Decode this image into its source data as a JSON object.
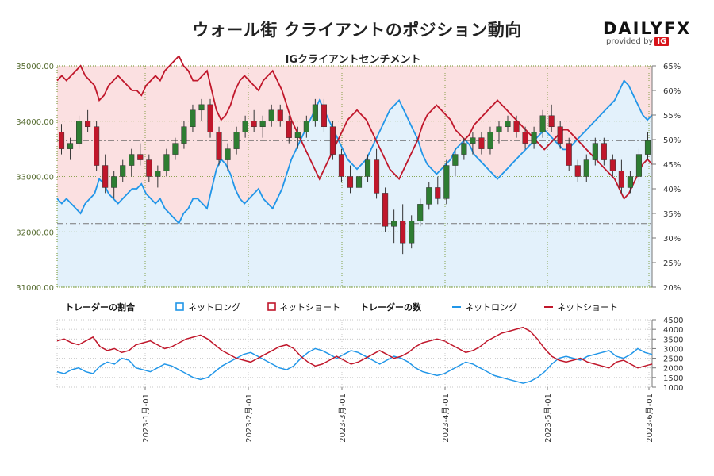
{
  "title": "ウォール街 クライアントのポジション動向",
  "brand": {
    "name_part1": "DAILY",
    "name_part2": "FX",
    "provided_by": "provided by",
    "ig": "IG"
  },
  "colors": {
    "up_candle": "#2e7d32",
    "down_candle": "#c0172b",
    "net_long": "#2196e8",
    "net_short": "#c0172b",
    "short_fill": "#fbe0e1",
    "long_fill": "#e3f1fb",
    "grid": "#6b8e23"
  },
  "chart_data": [
    {
      "type": "candlestick",
      "title": "IGクライアントセンチメント",
      "y_left": {
        "min": 31000,
        "max": 35000,
        "ticks": [
          "31000.00",
          "32000.00",
          "33000.00",
          "34000.00",
          "35000.00"
        ]
      },
      "y_right": {
        "min": 20,
        "max": 65,
        "ticks": [
          "20%",
          "25%",
          "30%",
          "35%",
          "40%",
          "45%",
          "50%",
          "55%",
          "60%",
          "65%"
        ]
      },
      "current_price": 33650,
      "reference_price": 32150,
      "legend": {
        "section_ratio": "トレーダーの割合",
        "net_long": "ネットロング",
        "net_short": "ネットショート",
        "section_count": "トレーダーの数"
      },
      "date_ticks": [
        "2023-1月-01",
        "2023-2月-01",
        "2023-3月-01",
        "2023-4月-01",
        "2023-5月-01",
        "2023-6月-01"
      ],
      "long_pct": [
        38,
        37,
        38,
        37,
        36,
        35,
        37,
        38,
        39,
        42,
        41,
        39,
        38,
        37,
        38,
        39,
        40,
        40,
        41,
        39,
        38,
        37,
        38,
        36,
        35,
        34,
        33,
        35,
        36,
        38,
        38,
        37,
        36,
        40,
        44,
        46,
        45,
        43,
        40,
        38,
        37,
        38,
        39,
        40,
        38,
        37,
        36,
        38,
        40,
        43,
        46,
        48,
        50,
        52,
        54,
        56,
        58,
        56,
        54,
        52,
        50,
        48,
        46,
        45,
        44,
        45,
        46,
        48,
        50,
        52,
        54,
        56,
        57,
        58,
        56,
        54,
        52,
        50,
        47,
        45,
        44,
        43,
        44,
        45,
        46,
        48,
        49,
        50,
        49,
        47,
        46,
        45,
        44,
        43,
        42,
        43,
        44,
        45,
        46,
        47,
        48,
        49,
        50,
        51,
        52,
        51,
        50,
        49,
        48,
        48,
        49,
        50,
        51,
        52,
        53,
        54,
        55,
        56,
        57,
        58,
        60,
        62,
        61,
        59,
        57,
        55,
        54,
        55
      ],
      "short_pct": [
        62,
        63,
        62,
        63,
        64,
        65,
        63,
        62,
        61,
        58,
        59,
        61,
        62,
        63,
        62,
        61,
        60,
        60,
        59,
        61,
        62,
        63,
        62,
        64,
        65,
        66,
        67,
        65,
        64,
        62,
        62,
        63,
        64,
        60,
        56,
        54,
        55,
        57,
        60,
        62,
        63,
        62,
        61,
        60,
        62,
        63,
        64,
        62,
        60,
        57,
        54,
        52,
        50,
        48,
        46,
        44,
        42,
        44,
        46,
        48,
        50,
        52,
        54,
        55,
        56,
        55,
        54,
        52,
        50,
        48,
        46,
        44,
        43,
        42,
        44,
        46,
        48,
        50,
        53,
        55,
        56,
        57,
        56,
        55,
        54,
        52,
        51,
        50,
        51,
        53,
        54,
        55,
        56,
        57,
        58,
        57,
        56,
        55,
        54,
        53,
        52,
        51,
        50,
        49,
        48,
        49,
        50,
        51,
        52,
        52,
        51,
        50,
        49,
        48,
        47,
        46,
        45,
        44,
        43,
        42,
        40,
        38,
        39,
        41,
        43,
        45,
        46,
        45
      ],
      "candles": [
        [
          33800,
          33950,
          33400,
          33500
        ],
        [
          33500,
          33700,
          33300,
          33600
        ],
        [
          33600,
          34100,
          33500,
          34000
        ],
        [
          34000,
          34200,
          33800,
          33900
        ],
        [
          33900,
          34000,
          33100,
          33200
        ],
        [
          33200,
          33400,
          32700,
          32800
        ],
        [
          32800,
          33100,
          32600,
          33000
        ],
        [
          33000,
          33300,
          32900,
          33200
        ],
        [
          33200,
          33500,
          33000,
          33400
        ],
        [
          33400,
          33600,
          33200,
          33300
        ],
        [
          33300,
          33400,
          32900,
          33000
        ],
        [
          33000,
          33200,
          32800,
          33100
        ],
        [
          33100,
          33500,
          33000,
          33400
        ],
        [
          33400,
          33700,
          33300,
          33600
        ],
        [
          33600,
          34000,
          33500,
          33900
        ],
        [
          33900,
          34300,
          33800,
          34200
        ],
        [
          34200,
          34400,
          34000,
          34300
        ],
        [
          34300,
          34400,
          33700,
          33800
        ],
        [
          33800,
          33900,
          33200,
          33300
        ],
        [
          33300,
          33600,
          33100,
          33500
        ],
        [
          33500,
          33900,
          33400,
          33800
        ],
        [
          33800,
          34100,
          33700,
          34000
        ],
        [
          34000,
          34200,
          33800,
          33900
        ],
        [
          33900,
          34100,
          33700,
          34000
        ],
        [
          34000,
          34300,
          33900,
          34200
        ],
        [
          34200,
          34300,
          33900,
          34000
        ],
        [
          34000,
          34100,
          33600,
          33700
        ],
        [
          33700,
          33900,
          33500,
          33800
        ],
        [
          33800,
          34100,
          33700,
          34000
        ],
        [
          34000,
          34400,
          33900,
          34300
        ],
        [
          34300,
          34400,
          33800,
          33900
        ],
        [
          33900,
          34000,
          33300,
          33400
        ],
        [
          33400,
          33500,
          32900,
          33000
        ],
        [
          33000,
          33200,
          32700,
          32800
        ],
        [
          32800,
          33100,
          32600,
          33000
        ],
        [
          33000,
          33400,
          32900,
          33300
        ],
        [
          33300,
          33500,
          32600,
          32700
        ],
        [
          32700,
          32800,
          32000,
          32100
        ],
        [
          32100,
          32400,
          31800,
          32200
        ],
        [
          32200,
          32500,
          31600,
          31800
        ],
        [
          31800,
          32300,
          31700,
          32200
        ],
        [
          32200,
          32600,
          32100,
          32500
        ],
        [
          32500,
          32900,
          32400,
          32800
        ],
        [
          32800,
          33000,
          32500,
          32600
        ],
        [
          32600,
          33300,
          32500,
          33200
        ],
        [
          33200,
          33500,
          33000,
          33400
        ],
        [
          33400,
          33700,
          33300,
          33600
        ],
        [
          33600,
          33800,
          33400,
          33700
        ],
        [
          33700,
          33800,
          33400,
          33500
        ],
        [
          33500,
          33900,
          33400,
          33800
        ],
        [
          33800,
          34000,
          33600,
          33900
        ],
        [
          33900,
          34100,
          33800,
          34000
        ],
        [
          34000,
          34100,
          33700,
          33800
        ],
        [
          33800,
          33900,
          33500,
          33600
        ],
        [
          33600,
          33900,
          33500,
          33800
        ],
        [
          33800,
          34200,
          33700,
          34100
        ],
        [
          34100,
          34300,
          33800,
          33900
        ],
        [
          33900,
          34000,
          33500,
          33600
        ],
        [
          33600,
          33700,
          33100,
          33200
        ],
        [
          33200,
          33300,
          32900,
          33000
        ],
        [
          33000,
          33400,
          32900,
          33300
        ],
        [
          33300,
          33700,
          33200,
          33600
        ],
        [
          33600,
          33700,
          33200,
          33300
        ],
        [
          33300,
          33400,
          33000,
          33100
        ],
        [
          33100,
          33300,
          32700,
          32800
        ],
        [
          32800,
          33100,
          32700,
          33000
        ],
        [
          33000,
          33500,
          32900,
          33400
        ],
        [
          33400,
          33800,
          33300,
          33650
        ]
      ],
      "ratio_panel": {
        "counts_long": [
          1800,
          1700,
          1900,
          2000,
          1800,
          1700,
          2100,
          2300,
          2200,
          2500,
          2400,
          2000,
          1900,
          1800,
          2000,
          2200,
          2100,
          1900,
          1700,
          1500,
          1400,
          1500,
          1800,
          2100,
          2300,
          2500,
          2700,
          2800,
          2600,
          2400,
          2200,
          2000,
          1900,
          2100,
          2500,
          2800,
          3000,
          2900,
          2700,
          2500,
          2700,
          2900,
          2800,
          2600,
          2400,
          2200,
          2400,
          2600,
          2500,
          2300,
          2000,
          1800,
          1700,
          1600,
          1700,
          1900,
          2100,
          2300,
          2200,
          2000,
          1800,
          1600,
          1500,
          1400,
          1300,
          1200,
          1300,
          1500,
          1800,
          2200,
          2500,
          2600,
          2500,
          2400,
          2600,
          2700,
          2800,
          2900,
          2600,
          2500,
          2700,
          3000,
          2800,
          2700
        ],
        "counts_short": [
          3400,
          3500,
          3300,
          3200,
          3400,
          3600,
          3100,
          2900,
          3000,
          2800,
          2900,
          3200,
          3300,
          3400,
          3200,
          3000,
          3100,
          3300,
          3500,
          3600,
          3700,
          3500,
          3200,
          2900,
          2700,
          2500,
          2400,
          2300,
          2500,
          2700,
          2900,
          3100,
          3200,
          3000,
          2600,
          2300,
          2100,
          2200,
          2400,
          2600,
          2400,
          2200,
          2300,
          2500,
          2700,
          2900,
          2700,
          2500,
          2600,
          2800,
          3100,
          3300,
          3400,
          3500,
          3400,
          3200,
          3000,
          2800,
          2900,
          3100,
          3400,
          3600,
          3800,
          3900,
          4000,
          4100,
          3900,
          3500,
          3000,
          2600,
          2400,
          2300,
          2400,
          2500,
          2300,
          2200,
          2100,
          2000,
          2300,
          2400,
          2200,
          2000,
          2100,
          2200
        ]
      },
      "count_axis": {
        "min": 1000,
        "max": 4500,
        "ticks": [
          "1000",
          "1500",
          "2000",
          "2500",
          "3000",
          "3500",
          "4000",
          "4500"
        ]
      }
    }
  ]
}
